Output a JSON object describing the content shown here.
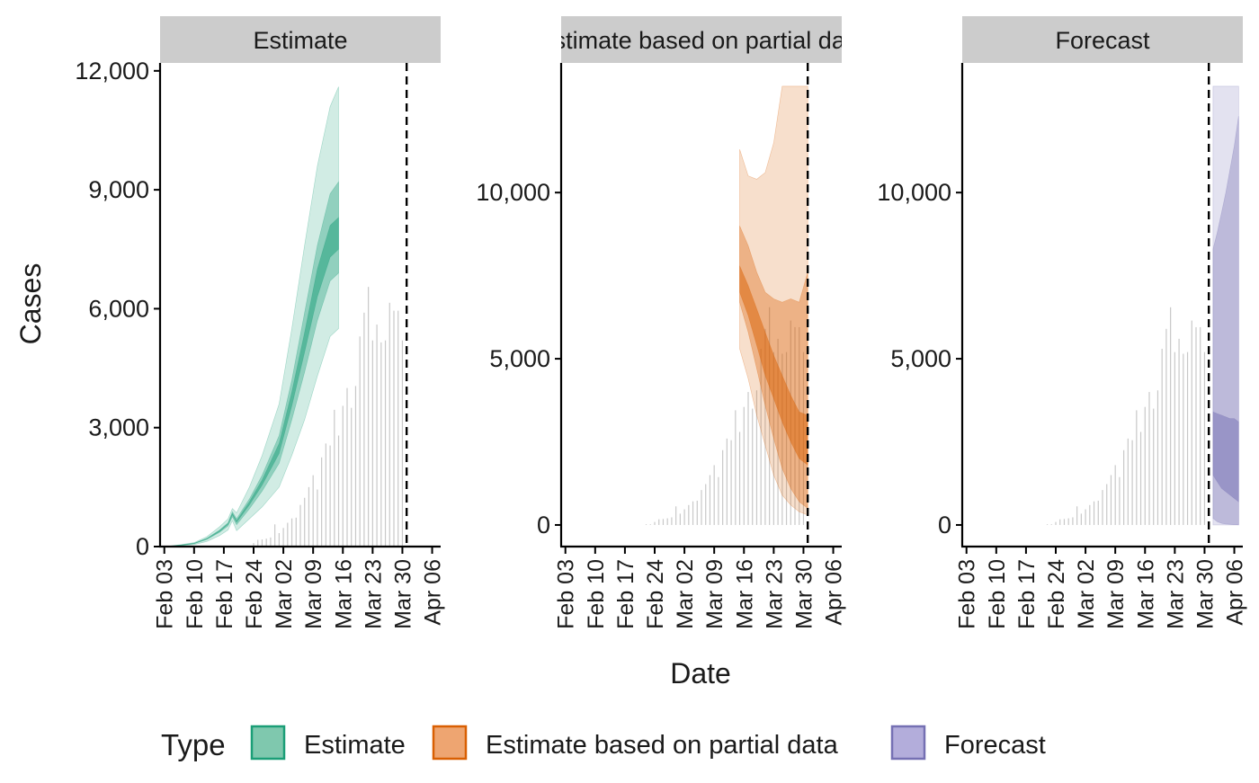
{
  "chart_data": {
    "type": "area",
    "ylabel": "Cases",
    "xlabel": "Date",
    "x_tick_labels": [
      "Feb 03",
      "Feb 10",
      "Feb 17",
      "Feb 24",
      "Mar 02",
      "Mar 09",
      "Mar 16",
      "Mar 23",
      "Mar 30",
      "Apr 06"
    ],
    "x_tick_dates": [
      "2020-02-03",
      "2020-02-10",
      "2020-02-17",
      "2020-02-24",
      "2020-03-02",
      "2020-03-09",
      "2020-03-16",
      "2020-03-23",
      "2020-03-30",
      "2020-04-06"
    ],
    "xlim": [
      "2020-02-02",
      "2020-04-08"
    ],
    "legend": {
      "title": "Type",
      "position": "bottom",
      "entries": [
        {
          "label": "Estimate",
          "fill": "#7fc8ae",
          "stroke": "#1b9e77"
        },
        {
          "label": "Estimate based on partial data",
          "fill": "#eea571",
          "stroke": "#d95f02"
        },
        {
          "label": "Forecast",
          "fill": "#b3addb",
          "stroke": "#7570b3"
        }
      ]
    },
    "colors": {
      "Estimate": "#1b9e77",
      "Estimate based on partial data": "#d95f02",
      "Forecast": "#7570b3",
      "bars": "#c8c8c8",
      "strip": "#cccccc"
    },
    "band_opacity": [
      0.2,
      0.35,
      0.5
    ],
    "report_date": "2020-03-31",
    "observed_cases": {
      "dates": [
        "2020-02-22",
        "2020-02-23",
        "2020-02-24",
        "2020-02-25",
        "2020-02-26",
        "2020-02-27",
        "2020-02-28",
        "2020-02-29",
        "2020-03-01",
        "2020-03-02",
        "2020-03-03",
        "2020-03-04",
        "2020-03-05",
        "2020-03-06",
        "2020-03-07",
        "2020-03-08",
        "2020-03-09",
        "2020-03-10",
        "2020-03-11",
        "2020-03-12",
        "2020-03-13",
        "2020-03-14",
        "2020-03-15",
        "2020-03-16",
        "2020-03-17",
        "2020-03-18",
        "2020-03-19",
        "2020-03-20",
        "2020-03-21",
        "2020-03-22",
        "2020-03-23",
        "2020-03-24",
        "2020-03-25",
        "2020-03-26",
        "2020-03-27",
        "2020-03-28",
        "2020-03-29",
        "2020-03-30"
      ],
      "values": [
        20,
        20,
        90,
        170,
        180,
        200,
        230,
        560,
        340,
        470,
        600,
        710,
        730,
        1050,
        1230,
        1500,
        1800,
        1440,
        2250,
        2600,
        2550,
        3450,
        2800,
        3550,
        4000,
        3500,
        4050,
        5300,
        5900,
        6550,
        5200,
        5600,
        5150,
        5200,
        6150,
        5950,
        5950,
        5200
      ]
    },
    "panels": [
      {
        "label": "Estimate",
        "ylim": [
          0,
          12200
        ],
        "y_ticks": [
          0,
          3000,
          6000,
          9000,
          12000
        ],
        "y_tick_labels": [
          "0",
          "3,000",
          "6,000",
          "9,000",
          "12,000"
        ],
        "series": [
          {
            "name": "Estimate",
            "dates": [
              "2020-02-04",
              "2020-02-07",
              "2020-02-10",
              "2020-02-13",
              "2020-02-16",
              "2020-02-18",
              "2020-02-19",
              "2020-02-20",
              "2020-02-23",
              "2020-02-26",
              "2020-03-01",
              "2020-03-04",
              "2020-03-07",
              "2020-03-10",
              "2020-03-13",
              "2020-03-15"
            ],
            "bands": [
              {
                "lower": [
                  0,
                  20,
                  50,
                  130,
                  280,
                  420,
                  650,
                  400,
                  700,
                  1000,
                  1500,
                  2300,
                  3200,
                  4300,
                  5300,
                  5500
                ],
                "upper": [
                  10,
                  50,
                  100,
                  250,
                  500,
                  700,
                  960,
                  850,
                  1500,
                  2300,
                  3600,
                  5500,
                  7600,
                  9600,
                  11100,
                  11600
                ]
              },
              {
                "lower": [
                  5,
                  30,
                  70,
                  180,
                  360,
                  520,
                  750,
                  550,
                  950,
                  1400,
                  2100,
                  3200,
                  4400,
                  5700,
                  6700,
                  6900
                ],
                "upper": [
                  8,
                  40,
                  85,
                  210,
                  420,
                  600,
                  880,
                  700,
                  1200,
                  1800,
                  2800,
                  4200,
                  5900,
                  7600,
                  8900,
                  9200
                ]
              },
              {
                "lower": [
                  6,
                  34,
                  76,
                  190,
                  380,
                  560,
                  800,
                  610,
                  1050,
                  1550,
                  2350,
                  3550,
                  4900,
                  6300,
                  7300,
                  7500
                ],
                "upper": [
                  7,
                  38,
                  82,
                  200,
                  400,
                  580,
                  840,
                  650,
                  1130,
                  1680,
                  2600,
                  3900,
                  5400,
                  7000,
                  8100,
                  8300
                ]
              }
            ]
          }
        ]
      },
      {
        "label": "Estimate based on partial data",
        "ylim": [
          -650,
          13900
        ],
        "y_ticks": [
          0,
          5000,
          10000
        ],
        "y_tick_labels": [
          "0",
          "5,000",
          "10,000"
        ],
        "series": [
          {
            "name": "Estimate based on partial data",
            "dates": [
              "2020-03-15",
              "2020-03-17",
              "2020-03-19",
              "2020-03-21",
              "2020-03-23",
              "2020-03-25",
              "2020-03-27",
              "2020-03-29",
              "2020-03-31"
            ],
            "bands": [
              {
                "lower": [
                  5300,
                  4400,
                  3300,
                  2400,
                  1500,
                  900,
                  600,
                  400,
                  300
                ],
                "upper": [
                  11300,
                  10500,
                  10400,
                  10600,
                  11500,
                  13200,
                  13200,
                  13200,
                  13200
                ]
              },
              {
                "lower": [
                  6700,
                  5800,
                  4700,
                  3600,
                  2600,
                  1700,
                  1100,
                  700,
                  500
                ],
                "upper": [
                  9000,
                  8400,
                  7600,
                  7000,
                  6800,
                  6700,
                  6800,
                  6700,
                  7600
                ]
              },
              {
                "lower": [
                  7000,
                  6300,
                  5400,
                  4500,
                  3800,
                  3100,
                  2500,
                  2000,
                  1800
                ],
                "upper": [
                  7800,
                  7200,
                  6500,
                  5800,
                  5100,
                  4500,
                  3900,
                  3400,
                  3300
                ]
              }
            ]
          }
        ]
      },
      {
        "label": "Forecast",
        "ylim": [
          -650,
          13900
        ],
        "y_ticks": [
          0,
          5000,
          10000
        ],
        "y_tick_labels": [
          "0",
          "5,000",
          "10,000"
        ],
        "series": [
          {
            "name": "Forecast",
            "dates": [
              "2020-04-01",
              "2020-04-02",
              "2020-04-03",
              "2020-04-04",
              "2020-04-05",
              "2020-04-06",
              "2020-04-07"
            ],
            "bands": [
              {
                "lower": [
                  0,
                  0,
                  0,
                  0,
                  0,
                  0,
                  0
                ],
                "upper": [
                  13200,
                  13200,
                  13200,
                  13200,
                  13200,
                  13200,
                  13200
                ]
              },
              {
                "lower": [
                  200,
                  100,
                  50,
                  30,
                  20,
                  10,
                  5
                ],
                "upper": [
                  8300,
                  8800,
                  9400,
                  10000,
                  10700,
                  11400,
                  12300
                ]
              },
              {
                "lower": [
                  1500,
                  1300,
                  1100,
                  1000,
                  900,
                  800,
                  700
                ],
                "upper": [
                  3400,
                  3350,
                  3300,
                  3250,
                  3200,
                  3200,
                  3100
                ]
              }
            ]
          }
        ]
      }
    ]
  }
}
